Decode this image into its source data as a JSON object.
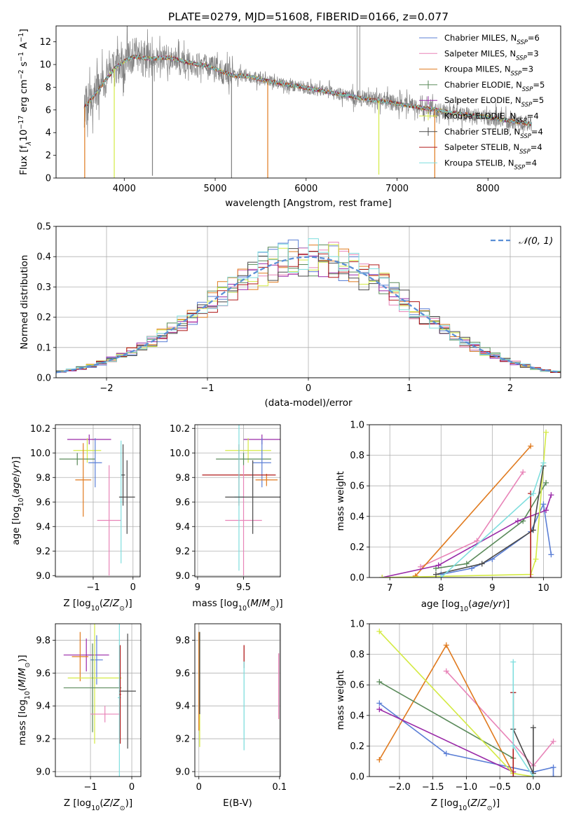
{
  "figure": {
    "title": "PLATE=0279, MJD=51608, FIBERID=0166, z=0.077",
    "colors": {
      "chabrier_miles": "#5b7fd6",
      "salpeter_miles": "#e884b8",
      "kroupa_miles": "#e07a1e",
      "chabrier_elodie": "#5a8a5a",
      "salpeter_elodie": "#9a2aa8",
      "kroupa_elodie": "#d4ea44",
      "chabrier_stelib": "#4a4a4a",
      "salpeter_stelib": "#b01a1a",
      "kroupa_stelib": "#7fdede",
      "data": "#808080"
    }
  },
  "chart_data": [
    {
      "id": "spectrum",
      "type": "line",
      "title": "PLATE=0279, MJD=51608, FIBERID=0166, z=0.077",
      "xlabel": "wavelength [Angstrom, rest frame]",
      "ylabel": "Flux [f",
      "ylabel_parts": [
        "Flux [f",
        "λ",
        "10",
        "−17",
        " erg cm",
        "−2",
        " s",
        "−1",
        " A",
        "−1",
        "]"
      ],
      "xlim": [
        3250,
        8800
      ],
      "ylim": [
        0,
        13.4
      ],
      "xticks": [
        4000,
        5000,
        6000,
        7000,
        8000
      ],
      "yticks": [
        0,
        2,
        4,
        6,
        8,
        10,
        12
      ],
      "grid": false,
      "legend_position": "top-right",
      "series": [
        {
          "name": "Chabrier MILES, N",
          "sub": "SSP",
          "suffix": "=6",
          "color": "#5b7fd6",
          "marker": "line"
        },
        {
          "name": "Salpeter MILES, N",
          "sub": "SSP",
          "suffix": "=3",
          "color": "#e884b8",
          "marker": "line"
        },
        {
          "name": "Kroupa MILES, N",
          "sub": "SSP",
          "suffix": "=3",
          "color": "#e07a1e",
          "marker": "line"
        },
        {
          "name": "Chabrier ELODIE, N",
          "sub": "SSP",
          "suffix": "=5",
          "color": "#5a8a5a",
          "marker": "plus"
        },
        {
          "name": "Salpeter ELODIE, N",
          "sub": "SSP",
          "suffix": "=5",
          "color": "#9a2aa8",
          "marker": "plus"
        },
        {
          "name": "Kroupa ELODIE, N",
          "sub": "SSP",
          "suffix": "=4",
          "color": "#d4ea44",
          "marker": "plus"
        },
        {
          "name": "Chabrier STELIB, N",
          "sub": "SSP",
          "suffix": "=4",
          "color": "#4a4a4a",
          "marker": "plus"
        },
        {
          "name": "Salpeter STELIB, N",
          "sub": "SSP",
          "suffix": "=4",
          "color": "#b01a1a",
          "marker": "line"
        },
        {
          "name": "Kroupa STELIB, N",
          "sub": "SSP",
          "suffix": "=4",
          "color": "#7fdede",
          "marker": "line"
        }
      ],
      "continuum": {
        "x": [
          3560,
          3620,
          3700,
          3800,
          3900,
          4000,
          4100,
          4200,
          4300,
          4400,
          4500,
          4600,
          4700,
          4800,
          4900,
          5000,
          5100,
          5200,
          5300,
          5400,
          5500,
          5600,
          5700,
          5800,
          5900,
          6000,
          6100,
          6200,
          6300,
          6400,
          6500,
          6600,
          6700,
          6800,
          6900,
          7000,
          7100,
          7200,
          7300,
          7400,
          7600,
          7800,
          8000,
          8200,
          8400,
          8500
        ],
        "y": [
          6.2,
          6.8,
          7.6,
          8.7,
          9.7,
          10.3,
          10.7,
          10.6,
          10.5,
          10.6,
          10.6,
          10.4,
          10.2,
          10.0,
          9.9,
          9.6,
          9.3,
          9.0,
          9.0,
          8.9,
          8.7,
          8.5,
          8.4,
          8.2,
          8.1,
          7.95,
          7.8,
          7.65,
          7.5,
          7.35,
          7.2,
          7.05,
          6.9,
          6.8,
          6.7,
          6.55,
          6.4,
          6.3,
          6.15,
          6.05,
          5.75,
          5.55,
          5.35,
          5.1,
          4.85,
          4.7
        ]
      },
      "spikes_down": [
        {
          "x": 3565,
          "y": 0.0,
          "color": "#e07a1e"
        },
        {
          "x": 3890,
          "y": 0.0,
          "color": "#d4ea44"
        },
        {
          "x": 5578,
          "y": 0.0,
          "color": "#e07a1e"
        },
        {
          "x": 6800,
          "y": 0.3,
          "color": "#d4ea44"
        },
        {
          "x": 7415,
          "y": 0.0,
          "color": "#e07a1e"
        },
        {
          "x": 4310,
          "y": 0.2,
          "color": "#808080"
        },
        {
          "x": 5180,
          "y": 0.0,
          "color": "#808080"
        }
      ],
      "spikes_up": [
        {
          "x": 6560,
          "y": 13.4,
          "color": "#808080"
        },
        {
          "x": 6590,
          "y": 13.4,
          "color": "#808080"
        }
      ]
    },
    {
      "id": "residuals",
      "type": "bar",
      "xlabel": "(data-model)/error",
      "ylabel": "Normed distribution",
      "xlim": [
        -2.5,
        2.5
      ],
      "ylim": [
        0,
        0.5
      ],
      "xticks": [
        -2,
        -1,
        0,
        1,
        2
      ],
      "yticks": [
        0.0,
        0.1,
        0.2,
        0.3,
        0.4,
        0.5
      ],
      "grid": true,
      "legend_position": "top-right",
      "legend": "𝒩(0, 1)",
      "gaussian": {
        "mean": 0,
        "sigma": 1,
        "color": "#5b8fd6"
      },
      "bin_width": 0.1
    },
    {
      "id": "age_vs_Z",
      "type": "scatter",
      "xlabel": "Z [log10(Z/Z☉)]",
      "ylabel": "age  [log10(age/yr)]",
      "xlim": [
        -1.95,
        0.18
      ],
      "ylim": [
        8.99,
        10.23
      ],
      "xticks": [
        -1,
        0
      ],
      "xticklabels": [
        "−1",
        "0"
      ],
      "yticks": [
        9.0,
        9.2,
        9.4,
        9.6,
        9.8,
        10.0,
        10.2
      ],
      "grid": true,
      "crosses": [
        {
          "x": -1.1,
          "xerr": 0.55,
          "y": 10.11,
          "yerr": 0.04,
          "color": "#9a2aa8"
        },
        {
          "x": -1.15,
          "xerr": 0.35,
          "y": 10.02,
          "yerr": 0.1,
          "color": "#d4ea44"
        },
        {
          "x": -1.4,
          "xerr": 0.45,
          "y": 9.95,
          "yerr": 0.05,
          "color": "#5a8a5a"
        },
        {
          "x": -0.95,
          "xerr": 0.17,
          "y": 9.92,
          "yerr": 0.2,
          "color": "#5b7fd6"
        },
        {
          "x": -1.25,
          "xerr": 0.2,
          "y": 9.78,
          "yerr": 0.3,
          "color": "#e07a1e"
        },
        {
          "x": -0.25,
          "xerr": 0.05,
          "y": 9.82,
          "yerr": 0.25,
          "color": "#4a4a4a"
        },
        {
          "x": -0.6,
          "xerr": 0.3,
          "y": 9.45,
          "yerr": 0.45,
          "color": "#e884b8"
        },
        {
          "x": -0.3,
          "xerr": 0.02,
          "y": 9.6,
          "yerr": 0.5,
          "color": "#7fdede"
        },
        {
          "x": -0.15,
          "xerr": 0.2,
          "y": 9.64,
          "yerr": 0.3,
          "color": "#4a4a4a"
        }
      ]
    },
    {
      "id": "age_vs_mass",
      "type": "scatter",
      "xlabel": "mass [log10(M/M☉)]",
      "ylabel": "",
      "xlim": [
        8.97,
        9.9
      ],
      "ylim": [
        8.99,
        10.23
      ],
      "xticks": [
        9.0,
        9.5
      ],
      "yticks": [
        9.0,
        9.2,
        9.4,
        9.6,
        9.8,
        10.0,
        10.2
      ],
      "grid": true,
      "crosses": [
        {
          "x": 9.7,
          "xerr": 0.2,
          "y": 10.11,
          "yerr": 0.04,
          "color": "#9a2aa8"
        },
        {
          "x": 9.55,
          "xerr": 0.25,
          "y": 10.02,
          "yerr": 0.1,
          "color": "#d4ea44"
        },
        {
          "x": 9.5,
          "xerr": 0.3,
          "y": 9.95,
          "yerr": 0.05,
          "color": "#5a8a5a"
        },
        {
          "x": 9.7,
          "xerr": 0.1,
          "y": 9.92,
          "yerr": 0.2,
          "color": "#5b7fd6"
        },
        {
          "x": 9.75,
          "xerr": 0.12,
          "y": 9.78,
          "yerr": 0.05,
          "color": "#e07a1e"
        },
        {
          "x": 9.45,
          "xerr": 0.4,
          "y": 9.82,
          "yerr": 0.25,
          "color": "#b01a1a"
        },
        {
          "x": 9.5,
          "xerr": 0.2,
          "y": 9.45,
          "yerr": 0.45,
          "color": "#e884b8"
        },
        {
          "x": 9.45,
          "xerr": 0.05,
          "y": 9.64,
          "yerr": 0.6,
          "color": "#7fdede"
        },
        {
          "x": 9.6,
          "xerr": 0.3,
          "y": 9.64,
          "yerr": 0.3,
          "color": "#4a4a4a"
        }
      ]
    },
    {
      "id": "massweight_vs_age",
      "type": "line",
      "xlabel": "age  [log10(age/yr)]",
      "ylabel": "mass weight",
      "xlim": [
        6.6,
        10.35
      ],
      "ylim": [
        0,
        1.0
      ],
      "xticks": [
        7,
        8,
        9,
        10
      ],
      "yticks": [
        0.0,
        0.2,
        0.4,
        0.6,
        0.8,
        1.0
      ],
      "grid": true,
      "series": [
        {
          "color": "#5b7fd6",
          "x": [
            8.0,
            8.6,
            9.0,
            9.75,
            10.0,
            10.15
          ],
          "y": [
            0.02,
            0.06,
            0.12,
            0.3,
            0.48,
            0.15
          ]
        },
        {
          "color": "#e884b8",
          "x": [
            7.6,
            8.7,
            9.6
          ],
          "y": [
            0.07,
            0.24,
            0.69
          ]
        },
        {
          "color": "#e07a1e",
          "x": [
            7.5,
            9.75
          ],
          "y": [
            0.01,
            0.86
          ]
        },
        {
          "color": "#5a8a5a",
          "x": [
            7.9,
            8.5,
            9.6,
            10.05
          ],
          "y": [
            0.06,
            0.09,
            0.37,
            0.62
          ]
        },
        {
          "color": "#9a2aa8",
          "x": [
            6.85,
            7.95,
            9.5,
            10.05,
            10.15
          ],
          "y": [
            0.0,
            0.08,
            0.37,
            0.44,
            0.54
          ]
        },
        {
          "color": "#d4ea44",
          "x": [
            6.85,
            9.75,
            9.85,
            10.05
          ],
          "y": [
            0.0,
            0.02,
            0.12,
            0.95
          ]
        },
        {
          "color": "#4a4a4a",
          "x": [
            7.9,
            8.8,
            9.8,
            10.0
          ],
          "y": [
            0.02,
            0.09,
            0.31,
            0.73
          ]
        },
        {
          "color": "#b01a1a",
          "x": [
            9.75,
            9.75
          ],
          "y": [
            0.0,
            0.55
          ]
        },
        {
          "color": "#7fdede",
          "x": [
            8.0,
            9.8,
            10.0
          ],
          "y": [
            0.0,
            0.55,
            0.75
          ]
        }
      ]
    },
    {
      "id": "mass_vs_Z",
      "type": "scatter",
      "xlabel": "Z [log10(Z/Z☉)]",
      "ylabel": "mass [log10(M/M☉)]",
      "xlim": [
        -1.85,
        0.22
      ],
      "ylim": [
        8.97,
        9.9
      ],
      "xticks": [
        -1,
        0
      ],
      "xticklabels": [
        "−1",
        "0"
      ],
      "yticks": [
        9.0,
        9.2,
        9.4,
        9.6,
        9.8
      ],
      "grid": true,
      "crosses": [
        {
          "x": -1.1,
          "xerr": 0.55,
          "y": 9.71,
          "yerr": 0.1,
          "color": "#9a2aa8"
        },
        {
          "x": -1.25,
          "xerr": 0.2,
          "y": 9.7,
          "yerr": 0.15,
          "color": "#e07a1e"
        },
        {
          "x": -0.85,
          "xerr": 0.15,
          "y": 9.68,
          "yerr": 0.15,
          "color": "#5b7fd6"
        },
        {
          "x": -0.9,
          "xerr": 0.65,
          "y": 9.57,
          "yerr": 0.4,
          "color": "#d4ea44"
        },
        {
          "x": -0.95,
          "xerr": 0.7,
          "y": 9.51,
          "yerr": 0.27,
          "color": "#5a8a5a"
        },
        {
          "x": -0.65,
          "xerr": 0.35,
          "y": 9.35,
          "yerr": 0.05,
          "color": "#e884b8"
        },
        {
          "x": -0.3,
          "xerr": 0.04,
          "y": 9.45,
          "yerr": 0.55,
          "color": "#7fdede"
        },
        {
          "x": -0.1,
          "xerr": 0.2,
          "y": 9.49,
          "yerr": 0.35,
          "color": "#4a4a4a"
        },
        {
          "x": -0.28,
          "xerr": 0.02,
          "y": 9.47,
          "yerr": 0.3,
          "color": "#b01a1a"
        }
      ]
    },
    {
      "id": "mass_vs_EBV",
      "type": "scatter",
      "xlabel": "E(B-V)",
      "ylabel": "",
      "xlim": [
        -0.005,
        0.101
      ],
      "ylim": [
        8.97,
        9.9
      ],
      "xticks": [
        0.0,
        0.1
      ],
      "yticks": [
        9.0,
        9.2,
        9.4,
        9.6,
        9.8
      ],
      "grid": true,
      "crosses": [
        {
          "x": 0.001,
          "xerr": 0.0,
          "y": 9.5,
          "yerr": 0.35,
          "color": "#d4ea44"
        },
        {
          "x": 0.0,
          "xerr": 0.0,
          "y": 9.55,
          "yerr": 0.3,
          "color": "#e07a1e"
        },
        {
          "x": 0.001,
          "xerr": 0.0,
          "y": 9.6,
          "yerr": 0.25,
          "color": "#4a4a4a"
        },
        {
          "x": 0.056,
          "xerr": 0.0,
          "y": 9.7,
          "yerr": 0.07,
          "color": "#b01a1a"
        },
        {
          "x": 0.056,
          "xerr": 0.0,
          "y": 9.4,
          "yerr": 0.27,
          "color": "#7fdede"
        },
        {
          "x": 0.099,
          "xerr": 0.0,
          "y": 9.52,
          "yerr": 0.2,
          "color": "#e884b8"
        }
      ]
    },
    {
      "id": "massweight_vs_Z",
      "type": "line",
      "xlabel": "Z [log10(Z/Z☉)]",
      "ylabel": "mass weight",
      "xlim": [
        -2.45,
        0.42
      ],
      "ylim": [
        0,
        1.0
      ],
      "xticks": [
        -2.0,
        -1.5,
        -1.0,
        -0.5,
        0.0
      ],
      "xticklabels": [
        "−2.0",
        "−1.5",
        "−1.0",
        "−0.5",
        "0.0"
      ],
      "yticks": [
        0.0,
        0.2,
        0.4,
        0.6,
        0.8,
        1.0
      ],
      "grid": true,
      "series": [
        {
          "color": "#5b7fd6",
          "x": [
            -2.3,
            -1.3,
            0.0,
            0.3,
            0.3
          ],
          "y": [
            0.48,
            0.15,
            0.03,
            0.06,
            0.0
          ]
        },
        {
          "color": "#e884b8",
          "x": [
            -1.3,
            0.0,
            0.3
          ],
          "y": [
            0.69,
            0.07,
            0.23
          ]
        },
        {
          "color": "#e07a1e",
          "x": [
            -2.3,
            -1.3,
            -0.3
          ],
          "y": [
            0.11,
            0.86,
            0.02
          ]
        },
        {
          "color": "#5a8a5a",
          "x": [
            -2.3,
            -0.3
          ],
          "y": [
            0.62,
            0.12
          ]
        },
        {
          "color": "#9a2aa8",
          "x": [
            -2.3,
            -0.3
          ],
          "y": [
            0.44,
            0.03
          ]
        },
        {
          "color": "#d4ea44",
          "x": [
            -2.3,
            -0.3,
            0.0
          ],
          "y": [
            0.95,
            0.02,
            0.0
          ]
        },
        {
          "color": "#4a4a4a",
          "x": [
            -0.3,
            -0.3,
            0.0,
            0.0
          ],
          "y": [
            0.55,
            0.31,
            0.02,
            0.32
          ]
        },
        {
          "color": "#b01a1a",
          "x": [
            -0.3,
            -0.3
          ],
          "y": [
            0.0,
            0.55
          ]
        },
        {
          "color": "#7fdede",
          "x": [
            -0.3,
            -0.3,
            0.0
          ],
          "y": [
            0.75,
            0.2,
            0.0
          ]
        }
      ]
    }
  ]
}
